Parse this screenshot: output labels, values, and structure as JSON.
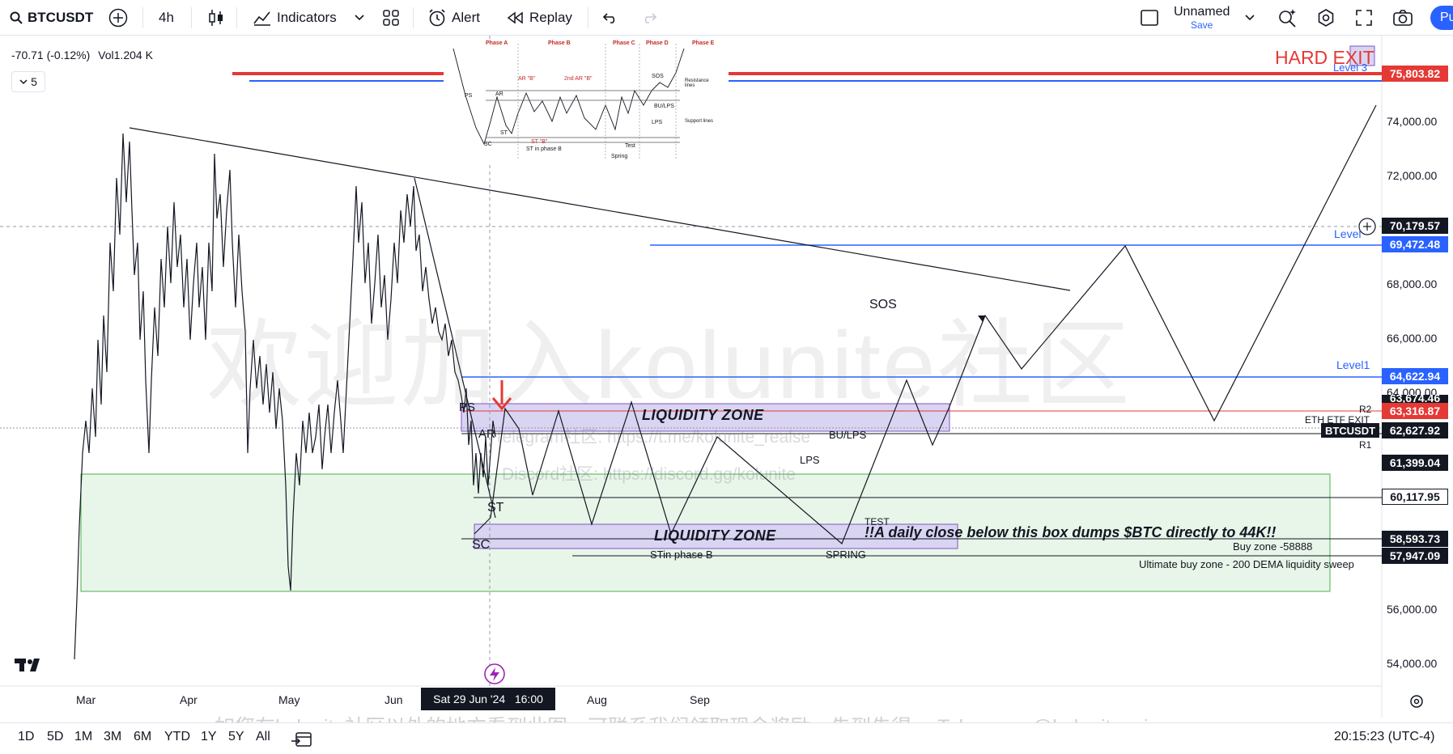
{
  "toolbar": {
    "symbol": "BTCUSDT",
    "interval": "4h",
    "indicators_label": "Indicators",
    "alert_label": "Alert",
    "replay_label": "Replay",
    "layout_name": "Unnamed",
    "layout_status": "Save",
    "publish_label": "Pu"
  },
  "legend": {
    "change": "-70.71 (-0.12%)",
    "volume_label": "Vol",
    "volume_value": "1.204 K",
    "collapse_count": "5"
  },
  "price_axis": {
    "ticks": [
      "74,000.00",
      "72,000.00",
      "68,000.00",
      "66,000.00",
      "64,000.00",
      "56,000.00",
      "54,000.00"
    ],
    "tags": [
      {
        "value": "75,803.82",
        "color": "#e53935"
      },
      {
        "value": "70,179.57",
        "color": "#131722"
      },
      {
        "value": "69,472.48",
        "color": "#2962ff"
      },
      {
        "value": "64,622.94",
        "color": "#2962ff"
      },
      {
        "value": "63,674.46",
        "color": "#131722"
      },
      {
        "value": "63,316.87",
        "color": "#e53935"
      },
      {
        "value": "62,627.92",
        "color": "#131722"
      },
      {
        "value": "61,399.04",
        "color": "#131722"
      },
      {
        "value": "60,117.95",
        "color": "#131722"
      },
      {
        "value": "58,593.73",
        "color": "#131722"
      },
      {
        "value": "57,947.09",
        "color": "#131722"
      }
    ],
    "symbol_tag": "BTCUSDT"
  },
  "time_axis": {
    "labels": [
      "Mar",
      "Apr",
      "May",
      "Jun",
      "Aug",
      "Sep"
    ],
    "crosshair_label": "Sat 29 Jun '24   16:00"
  },
  "annotations": {
    "hard_exit": "HARD EXIT",
    "level3": "Level 3",
    "level2": "Level",
    "level1": "Level1",
    "sos": "SOS",
    "ps": "PS",
    "ar": "AR",
    "st": "ST",
    "sc": "SC",
    "lps": "LPS",
    "bu_lps": "BU/LPS",
    "test": "TEST",
    "spring": "SPRING",
    "st_phase_b": "STin phase B",
    "liquidity_zone_top": "LIQUIDITY ZONE",
    "liquidity_zone_bottom": "LIQUIDITY ZONE",
    "warning": "!!A daily close below this box dumps $BTC directly to 44K!!",
    "buy_zone": "Buy zone -58888",
    "ultimate_buy_zone": "Ultimate buy zone - 200 DEMA liquidity sweep",
    "eth_etf_exit": "ETH ETF EXIT",
    "r2": "R2",
    "r1": "R1"
  },
  "schematic": {
    "phases": [
      "Phase A",
      "Phase B",
      "Phase C",
      "Phase D",
      "Phase E"
    ],
    "labels": [
      "PS",
      "AR",
      "AR \"B\"",
      "2nd AR \"B\"",
      "SOS",
      "BU/LPS",
      "LPS",
      "SC",
      "ST",
      "ST in phase B",
      "ST \"B\"",
      "Test",
      "Spring",
      "Resistance lines",
      "Support lines"
    ]
  },
  "watermarks": {
    "big": "欢迎加入kolunite社区",
    "telegram": "Telegram社区: https://t.me/kolunite_realse",
    "discord": "Discord社区: https://discord.gg/kolunite",
    "footer": "如您在kolunite社区以外的地方看到此图，可联系我们领取现金奖励，先到先得。 Telegram: @kolunite_vip"
  },
  "bottombar": {
    "ranges": [
      "1D",
      "5D",
      "1M",
      "3M",
      "6M",
      "YTD",
      "1Y",
      "5Y",
      "All"
    ],
    "clock": "20:15:23 (UTC-4)"
  },
  "colors": {
    "accent": "#2962ff",
    "danger": "#e53935",
    "buy_zone_fill": "#e8f5e9",
    "buy_zone_border": "#4caf50",
    "liquidity_fill": "#d9d4f2",
    "liquidity_border": "#7e57c2"
  }
}
